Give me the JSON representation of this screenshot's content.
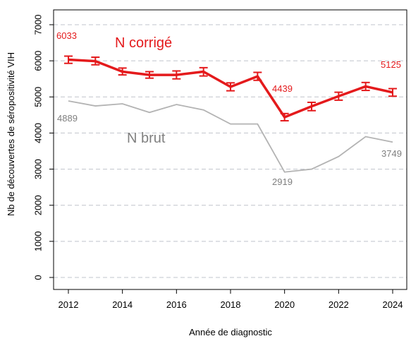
{
  "chart_data": {
    "type": "line",
    "xlabel": "Année de diagnostic",
    "ylabel": "Nb de découvertes de séropositivité VIH",
    "xlim": [
      2012,
      2024
    ],
    "ylim": [
      0,
      7000
    ],
    "x_ticks": [
      2012,
      2014,
      2016,
      2018,
      2020,
      2022,
      2024
    ],
    "y_ticks": [
      0,
      1000,
      2000,
      3000,
      4000,
      5000,
      6000,
      7000
    ],
    "grid": "horizontal dashed",
    "x": [
      2012,
      2013,
      2014,
      2015,
      2016,
      2017,
      2018,
      2019,
      2020,
      2021,
      2022,
      2023,
      2024
    ],
    "series": [
      {
        "name": "N corrigé",
        "color": "#e41a1c",
        "values": [
          6033,
          5990,
          5700,
          5610,
          5610,
          5700,
          5280,
          5570,
          4439,
          4740,
          5020,
          5290,
          5125
        ],
        "error_low": [
          5930,
          5890,
          5610,
          5520,
          5500,
          5580,
          5170,
          5460,
          4340,
          4620,
          4910,
          5180,
          5020
        ],
        "error_high": [
          6130,
          6100,
          5800,
          5700,
          5720,
          5810,
          5390,
          5680,
          4540,
          4850,
          5130,
          5400,
          5230
        ],
        "annotations": [
          {
            "x": 2012,
            "text": "6033"
          },
          {
            "x": 2020,
            "text": "4439"
          },
          {
            "x": 2024,
            "text": "5125"
          }
        ]
      },
      {
        "name": "N brut",
        "color": "#b3b3b3",
        "values": [
          4889,
          4750,
          4810,
          4570,
          4790,
          4640,
          4250,
          4250,
          2919,
          3000,
          3350,
          3900,
          3749
        ],
        "annotations": [
          {
            "x": 2012,
            "text": "4889"
          },
          {
            "x": 2020,
            "text": "2919"
          },
          {
            "x": 2024,
            "text": "3749"
          }
        ]
      }
    ]
  }
}
